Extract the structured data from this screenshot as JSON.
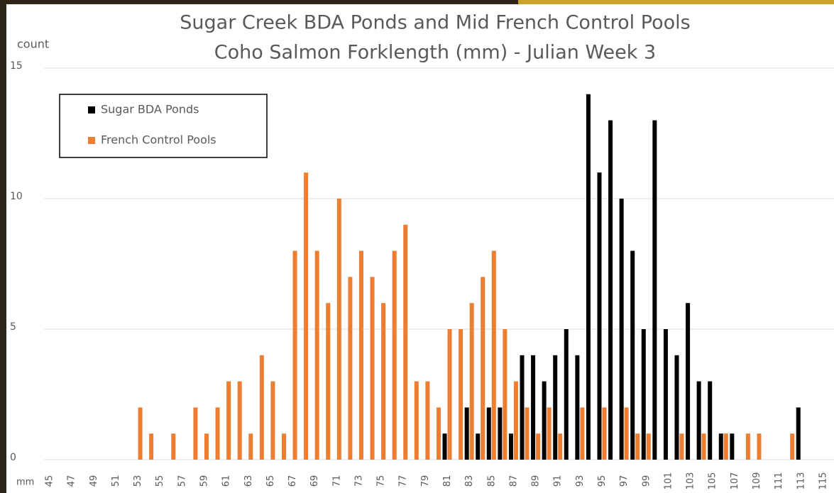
{
  "chart_data": {
    "type": "bar",
    "title": "Sugar Creek BDA Ponds and Mid French Control Pools",
    "subtitle": "Coho Salmon Forklength (mm) - Julian Week 3",
    "y_label": "count",
    "x_label": "mm",
    "categories": [
      45,
      null,
      47,
      null,
      49,
      null,
      51,
      null,
      53,
      null,
      55,
      null,
      57,
      null,
      59,
      null,
      61,
      null,
      63,
      null,
      65,
      null,
      67,
      null,
      69,
      null,
      71,
      null,
      73,
      null,
      75,
      null,
      77,
      null,
      79,
      null,
      81,
      null,
      83,
      null,
      85,
      null,
      87,
      null,
      89,
      null,
      91,
      null,
      93,
      null,
      95,
      null,
      97,
      null,
      99,
      null,
      101,
      null,
      103,
      null,
      105,
      null,
      107,
      null,
      109,
      null,
      111,
      null,
      113,
      null,
      115
    ],
    "series": [
      {
        "name": "Sugar BDA Ponds",
        "color": "#000000",
        "values": [
          0,
          0,
          0,
          0,
          0,
          0,
          0,
          0,
          0,
          0,
          0,
          0,
          0,
          0,
          0,
          0,
          0,
          0,
          0,
          0,
          0,
          0,
          0,
          0,
          0,
          0,
          0,
          0,
          0,
          0,
          0,
          0,
          0,
          0,
          0,
          0,
          1,
          0,
          2,
          1,
          2,
          2,
          1,
          4,
          4,
          3,
          4,
          5,
          4,
          14,
          11,
          13,
          10,
          8,
          5,
          13,
          5,
          4,
          6,
          3,
          3,
          1,
          1,
          0,
          0,
          0,
          0,
          0,
          2,
          0,
          0
        ]
      },
      {
        "name": "French Control Pools",
        "color": "#ed7d31",
        "values": [
          0,
          0,
          0,
          0,
          0,
          0,
          0,
          0,
          2,
          1,
          0,
          1,
          0,
          2,
          1,
          2,
          3,
          3,
          1,
          4,
          3,
          1,
          8,
          11,
          8,
          6,
          10,
          7,
          8,
          7,
          6,
          8,
          9,
          3,
          3,
          2,
          5,
          5,
          6,
          7,
          8,
          5,
          3,
          2,
          1,
          2,
          1,
          0,
          2,
          0,
          2,
          0,
          2,
          1,
          1,
          0,
          0,
          1,
          0,
          1,
          0,
          1,
          0,
          1,
          1,
          0,
          0,
          1,
          0,
          0,
          0
        ]
      }
    ],
    "ylim": [
      0,
      15
    ],
    "yticks": [
      0,
      5,
      10,
      15
    ],
    "grid": true,
    "legend": "upper left"
  }
}
